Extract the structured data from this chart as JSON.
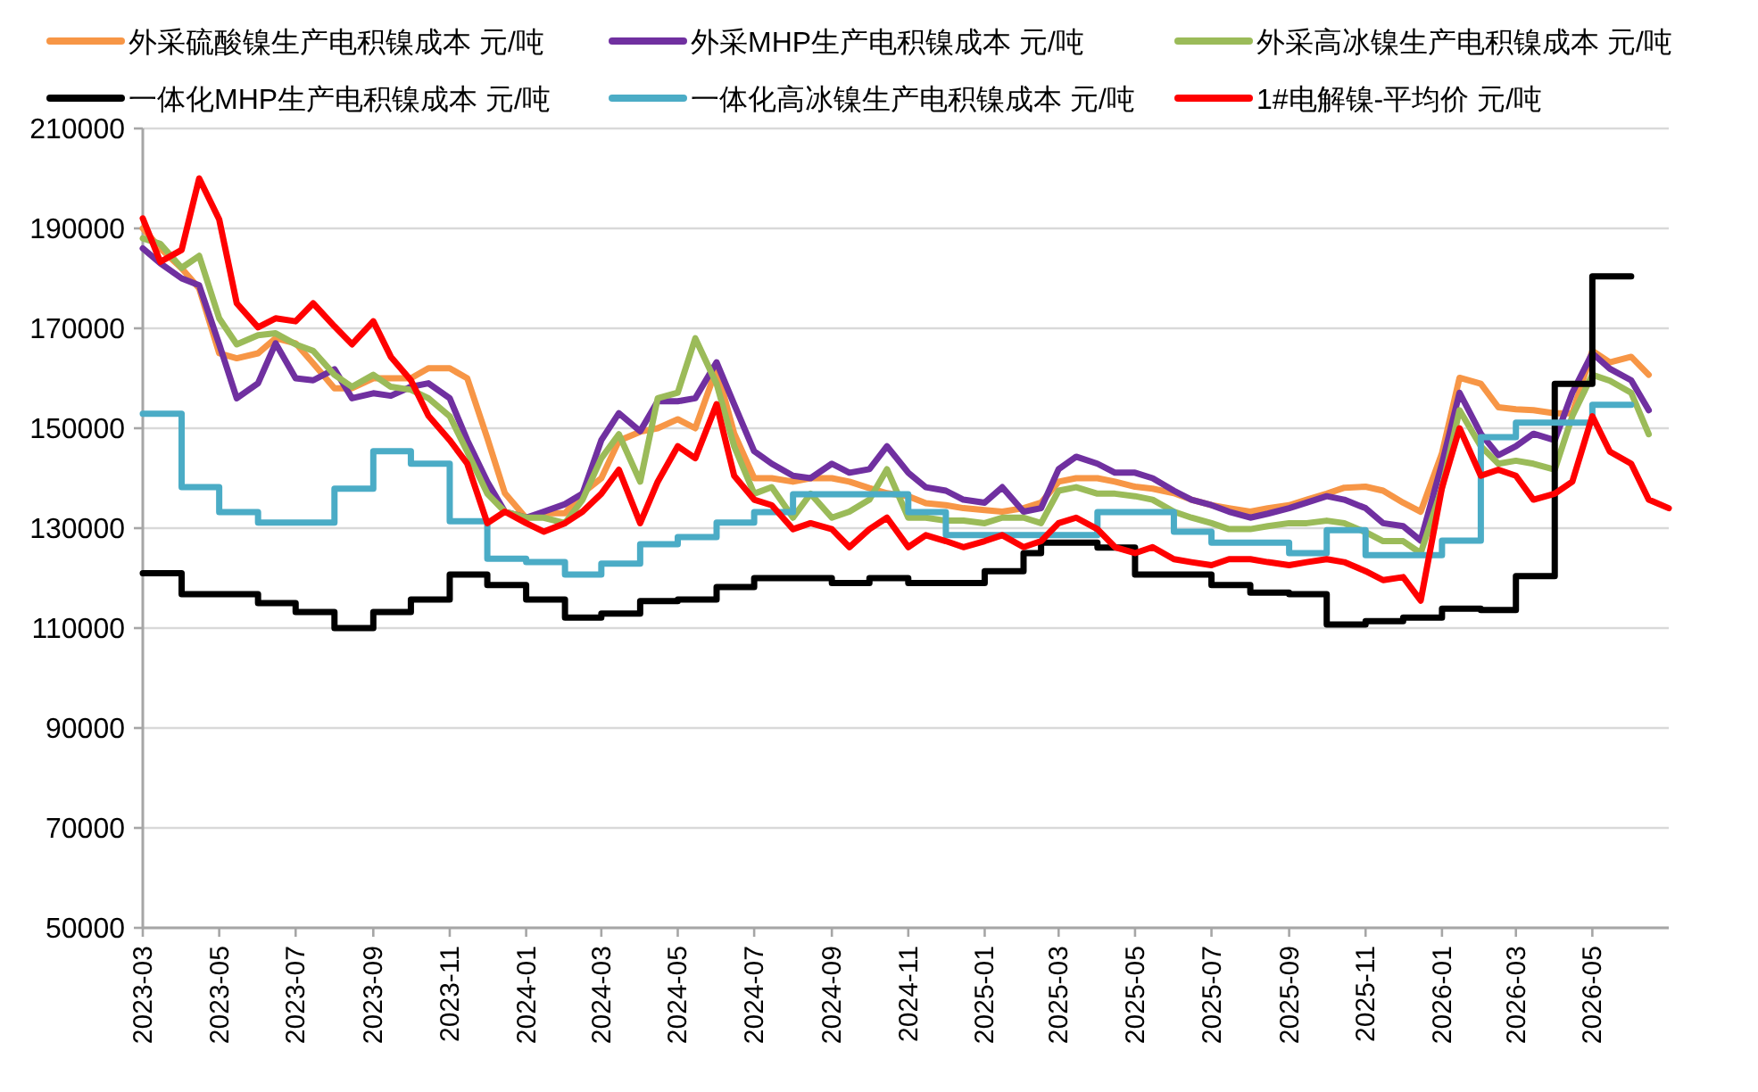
{
  "chart_data": {
    "type": "line",
    "legend": "top",
    "grid": "y",
    "marker": "none",
    "line_style": "solid",
    "xlim": [
      "2023-03",
      "2026-07"
    ],
    "ylim": [
      50000,
      210000
    ],
    "yticks": [
      50000,
      70000,
      90000,
      110000,
      130000,
      150000,
      170000,
      190000,
      210000
    ],
    "xticks": [
      "2023-03",
      "2023-05",
      "2023-07",
      "2023-09",
      "2023-11",
      "2024-01",
      "2024-03",
      "2024-05",
      "2024-07",
      "2024-09",
      "2024-11",
      "2025-01",
      "2025-03",
      "2025-05",
      "2025-07",
      "2025-09",
      "2025-11",
      "2026-01",
      "2026-03",
      "2026-05"
    ],
    "x": [
      "2023-03-01",
      "2023-03-15",
      "2023-04-01",
      "2023-04-15",
      "2023-05-01",
      "2023-05-15",
      "2023-06-01",
      "2023-06-15",
      "2023-07-01",
      "2023-07-15",
      "2023-08-01",
      "2023-08-15",
      "2023-09-01",
      "2023-09-15",
      "2023-10-01",
      "2023-10-15",
      "2023-11-01",
      "2023-11-15",
      "2023-12-01",
      "2023-12-15",
      "2024-01-01",
      "2024-01-15",
      "2024-02-01",
      "2024-02-15",
      "2024-03-01",
      "2024-03-15",
      "2024-04-01",
      "2024-04-15",
      "2024-05-01",
      "2024-05-15",
      "2024-06-01",
      "2024-06-15",
      "2024-07-01",
      "2024-07-15",
      "2024-08-01",
      "2024-08-15",
      "2024-09-01",
      "2024-09-15",
      "2024-10-01",
      "2024-10-15",
      "2024-11-01",
      "2024-11-15",
      "2024-12-01",
      "2024-12-15",
      "2025-01-01",
      "2025-01-15",
      "2025-02-01",
      "2025-02-15",
      "2025-03-01",
      "2025-03-15",
      "2025-04-01",
      "2025-04-15",
      "2025-05-01",
      "2025-05-15",
      "2025-06-01",
      "2025-06-15",
      "2025-07-01",
      "2025-07-15",
      "2025-08-01",
      "2025-08-15",
      "2025-09-01",
      "2025-09-15",
      "2025-10-01",
      "2025-10-15",
      "2025-11-01",
      "2025-11-15",
      "2025-12-01",
      "2025-12-15",
      "2026-01-01",
      "2026-01-15",
      "2026-02-01",
      "2026-02-15",
      "2026-03-01",
      "2026-03-15",
      "2026-04-01",
      "2026-04-15",
      "2026-05-01",
      "2026-05-15",
      "2026-06-01",
      "2026-06-15",
      "2026-07-01"
    ],
    "series": [
      {
        "name": "外采硫酸镍生产电积镍成本 元/吨",
        "color": "#f79646",
        "values": [
          190000,
          186000,
          182000,
          178000,
          165000,
          164000,
          165000,
          168000,
          167000,
          163000,
          158000,
          158000,
          160000,
          160000,
          160000,
          162000,
          162000,
          160000,
          148000,
          137000,
          132000,
          133000,
          133000,
          137000,
          140000,
          147500,
          149300,
          150000,
          151800,
          150000,
          162000,
          149000,
          140000,
          140000,
          139300,
          140000,
          140000,
          139300,
          138000,
          137000,
          136400,
          135000,
          134600,
          134000,
          133600,
          133300,
          134000,
          135100,
          139300,
          140000,
          140000,
          139300,
          138300,
          137900,
          137000,
          135700,
          134600,
          134000,
          133300,
          134000,
          134600,
          135700,
          136900,
          138100,
          138300,
          137500,
          135100,
          133300,
          145000,
          160100,
          158900,
          154200,
          153800,
          153600,
          153000,
          153000,
          165500,
          163200,
          164300,
          160700,
          null
        ]
      },
      {
        "name": "外采MHP生产电积镍成本 元/吨",
        "color": "#7030a0",
        "values": [
          186000,
          183000,
          180000,
          178600,
          166800,
          156000,
          159000,
          167000,
          160000,
          159600,
          161800,
          156000,
          157000,
          156500,
          158300,
          159000,
          156000,
          147600,
          139300,
          133300,
          132100,
          133300,
          134800,
          136900,
          147600,
          153000,
          149400,
          155400,
          155400,
          156000,
          163200,
          154800,
          145400,
          142900,
          140500,
          140000,
          142900,
          141100,
          141800,
          146400,
          141100,
          138200,
          137500,
          135700,
          135100,
          138200,
          133300,
          134000,
          141800,
          144300,
          142900,
          141100,
          141100,
          140000,
          137500,
          135700,
          134600,
          133300,
          132100,
          132900,
          134000,
          135100,
          136400,
          135700,
          134000,
          131000,
          130400,
          127500,
          142900,
          157100,
          148900,
          144600,
          146400,
          148900,
          147600,
          157100,
          165000,
          161900,
          159600,
          153600,
          null
        ]
      },
      {
        "name": "外采高冰镍生产电积镍成本 元/吨",
        "color": "#9bbb59",
        "values": [
          188000,
          186900,
          182100,
          184500,
          172000,
          166800,
          168600,
          169000,
          166800,
          165500,
          160700,
          158300,
          160700,
          158300,
          157700,
          156000,
          152400,
          145300,
          136900,
          133300,
          132100,
          132100,
          131000,
          135700,
          144000,
          148800,
          139300,
          156000,
          157100,
          168000,
          158900,
          146400,
          136900,
          138200,
          132100,
          136900,
          132100,
          133300,
          135700,
          141800,
          132100,
          132100,
          131500,
          131500,
          131000,
          132100,
          132100,
          131000,
          137500,
          138200,
          136900,
          136900,
          136400,
          135700,
          133300,
          132100,
          131000,
          129800,
          129800,
          130400,
          131000,
          131000,
          131500,
          131000,
          129200,
          127400,
          127400,
          125000,
          138100,
          153600,
          146400,
          142900,
          143500,
          142900,
          141700,
          152400,
          160700,
          159500,
          157100,
          148800,
          null
        ]
      },
      {
        "name": "一体化MHP生产电积镍成本 元/吨",
        "color": "#000000",
        "type": "step",
        "x": [
          "2023-03-01",
          "2023-04-01",
          "2023-06-01",
          "2023-07-01",
          "2023-08-01",
          "2023-09-01",
          "2023-10-01",
          "2023-11-01",
          "2023-12-01",
          "2024-01-01",
          "2024-02-01",
          "2024-03-01",
          "2024-04-01",
          "2024-05-01",
          "2024-06-01",
          "2024-07-01",
          "2024-09-01",
          "2024-10-01",
          "2024-11-01",
          "2025-01-01",
          "2025-02-01",
          "2025-02-15",
          "2025-04-01",
          "2025-05-01",
          "2025-07-01",
          "2025-08-01",
          "2025-09-01",
          "2025-10-01",
          "2025-11-01",
          "2025-12-01",
          "2026-01-01",
          "2026-02-01",
          "2026-03-01",
          "2026-04-01",
          "2026-05-01",
          "2026-06-01"
        ],
        "values": [
          121000,
          116800,
          115000,
          113200,
          110000,
          113200,
          115700,
          120700,
          118600,
          115700,
          112100,
          112900,
          115400,
          115700,
          118200,
          120000,
          119000,
          120000,
          119000,
          121400,
          125000,
          127100,
          126100,
          120700,
          118600,
          117100,
          116800,
          110700,
          111400,
          112100,
          113900,
          113600,
          120400,
          158900,
          180400,
          180400
        ]
      },
      {
        "name": "一体化高冰镍生产电积镍成本 元/吨",
        "color": "#4bacc6",
        "type": "step",
        "x": [
          "2023-03-01",
          "2023-04-01",
          "2023-05-01",
          "2023-06-01",
          "2023-08-01",
          "2023-09-01",
          "2023-10-01",
          "2023-11-01",
          "2023-12-01",
          "2024-01-01",
          "2024-02-01",
          "2024-03-01",
          "2024-04-01",
          "2024-05-01",
          "2024-06-01",
          "2024-07-01",
          "2024-08-01",
          "2024-11-01",
          "2024-12-01",
          "2025-04-01",
          "2025-06-01",
          "2025-07-01",
          "2025-09-01",
          "2025-10-01",
          "2025-11-01",
          "2026-01-01",
          "2026-02-01",
          "2026-03-01",
          "2026-05-01",
          "2026-06-01"
        ],
        "values": [
          152900,
          138200,
          133200,
          131100,
          137900,
          145400,
          142900,
          131400,
          123900,
          123200,
          120700,
          122900,
          126800,
          128200,
          131100,
          133200,
          136800,
          133200,
          128600,
          133200,
          129300,
          127100,
          125000,
          129600,
          124600,
          127500,
          148200,
          151100,
          154700,
          154700
        ]
      },
      {
        "name": "1#电解镍-平均价 元/吨",
        "color": "#ff0000",
        "values": [
          192000,
          183300,
          185700,
          200000,
          191800,
          175000,
          170200,
          172000,
          171400,
          175000,
          170400,
          166800,
          171400,
          164300,
          159600,
          152500,
          147600,
          142900,
          131000,
          133300,
          131000,
          129300,
          131000,
          133300,
          136900,
          141700,
          131000,
          139300,
          146400,
          144000,
          154800,
          140500,
          135700,
          134600,
          129800,
          131000,
          129800,
          126200,
          129800,
          132100,
          126200,
          128600,
          127400,
          126200,
          127400,
          128600,
          126200,
          127400,
          131000,
          132100,
          129800,
          126200,
          125000,
          126200,
          123800,
          123200,
          122600,
          123800,
          123800,
          123200,
          122600,
          123200,
          123800,
          123200,
          121400,
          119600,
          120200,
          115500,
          138100,
          150000,
          140500,
          141700,
          140500,
          135700,
          136900,
          139300,
          152400,
          145300,
          142900,
          135700,
          134000
        ]
      }
    ]
  }
}
